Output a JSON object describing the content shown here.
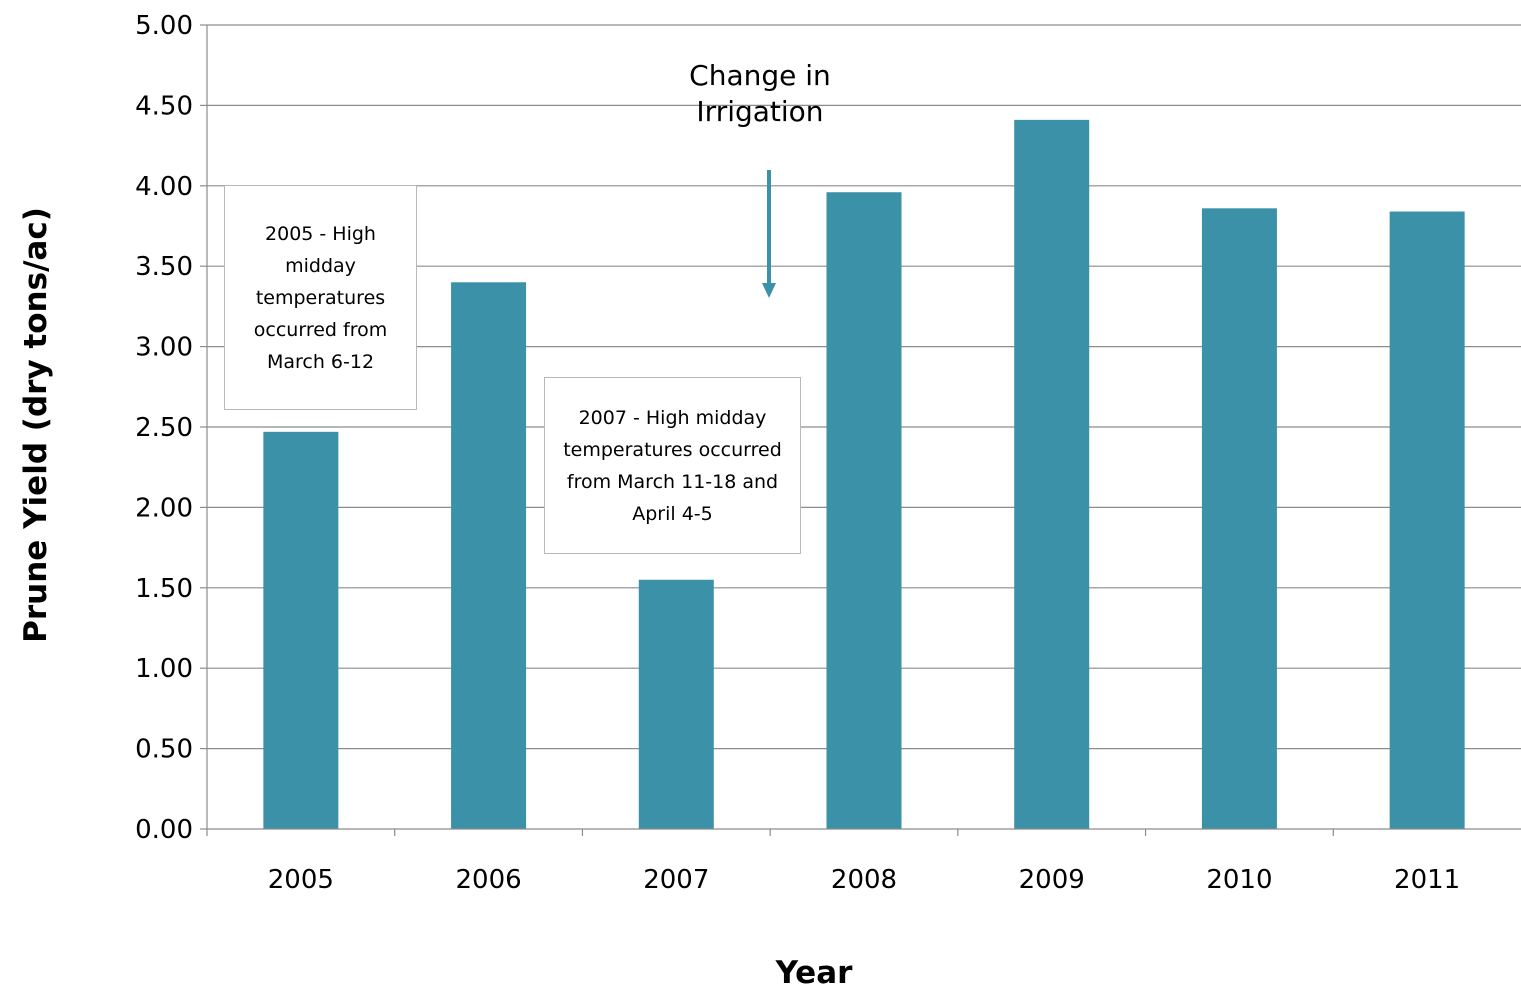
{
  "chart_data": {
    "type": "bar",
    "title": "",
    "xlabel": "Year",
    "ylabel": "Prune Yield  (dry tons/ac)",
    "categories": [
      "2005",
      "2006",
      "2007",
      "2008",
      "2009",
      "2010",
      "2011"
    ],
    "series": [
      {
        "values": [
          2.47,
          3.4,
          1.55,
          3.96,
          4.41,
          3.86,
          3.84
        ]
      }
    ],
    "ylim": [
      0,
      5
    ],
    "yticks": [
      "0.00",
      "0.50",
      "1.00",
      "1.50",
      "2.00",
      "2.50",
      "3.00",
      "3.50",
      "4.00",
      "4.50",
      "5.00"
    ],
    "grid": true,
    "legend": "none",
    "bar_color": "#3a91a8",
    "annotations": {
      "note_2005": "2005 - High midday temperatures occurred from March 6-12",
      "note_2007": "2007 - High midday temperatures occurred from March 11-18 and April 4-5",
      "irrigation_line1": "Change in",
      "irrigation_line2": "Irrigation"
    }
  }
}
